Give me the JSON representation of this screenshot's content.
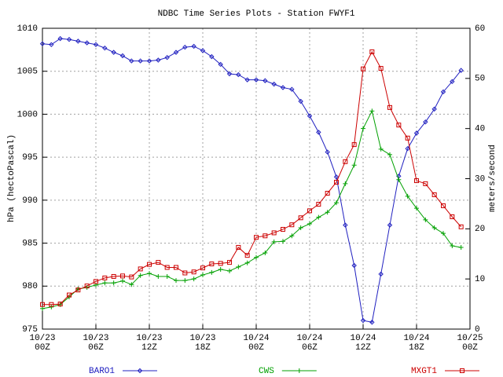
{
  "chart_data": {
    "type": "line",
    "title": "NDBC Time Series Plots - Station FWYF1",
    "ylabel": "hPa (hectoPascal)",
    "y2label": "meters/second",
    "x": [
      0,
      1,
      2,
      3,
      4,
      5,
      6,
      7,
      8,
      9,
      10,
      11,
      12,
      13,
      14,
      15,
      16,
      17,
      18,
      19,
      20,
      21,
      22,
      23,
      24,
      25,
      26,
      27,
      28,
      29,
      30,
      31,
      32,
      33,
      34,
      35,
      36,
      37,
      38,
      39,
      40,
      41,
      42,
      43,
      44,
      45,
      46,
      47
    ],
    "xlim": [
      0,
      48
    ],
    "xticks": [
      {
        "value": 0,
        "label": "10/23\n00Z"
      },
      {
        "value": 6,
        "label": "10/23\n06Z"
      },
      {
        "value": 12,
        "label": "10/23\n12Z"
      },
      {
        "value": 18,
        "label": "10/23\n18Z"
      },
      {
        "value": 24,
        "label": "10/24\n00Z"
      },
      {
        "value": 30,
        "label": "10/24\n06Z"
      },
      {
        "value": 36,
        "label": "10/24\n12Z"
      },
      {
        "value": 42,
        "label": "10/24\n18Z"
      },
      {
        "value": 48,
        "label": "10/25\n00Z"
      }
    ],
    "ylim": [
      975,
      1010
    ],
    "yticks": [
      975,
      980,
      985,
      990,
      995,
      1000,
      1005,
      1010
    ],
    "y2lim": [
      0,
      60
    ],
    "y2ticks": [
      0,
      10,
      20,
      30,
      40,
      50,
      60
    ],
    "grid": true,
    "legend": "bottom",
    "series": [
      {
        "name": "BARO1",
        "color": "#2020c0",
        "marker": "diamond",
        "axis": "y",
        "values": [
          1008.2,
          1008.1,
          1008.8,
          1008.7,
          1008.5,
          1008.3,
          1008.1,
          1007.7,
          1007.2,
          1006.8,
          1006.2,
          1006.2,
          1006.2,
          1006.3,
          1006.6,
          1007.2,
          1007.8,
          1007.9,
          1007.4,
          1006.7,
          1005.8,
          1004.7,
          1004.6,
          1004.0,
          1004.0,
          1003.9,
          1003.5,
          1003.1,
          1002.9,
          1001.5,
          999.8,
          997.9,
          995.6,
          992.7,
          987.1,
          982.4,
          976.0,
          975.8,
          981.4,
          987.1,
          992.8,
          996.0,
          997.8,
          999.1,
          1000.6,
          1002.6,
          1003.8,
          1005.1
        ]
      },
      {
        "name": "CWS",
        "color": "#00a000",
        "marker": "plus",
        "axis": "y2",
        "values": [
          4.1,
          4.4,
          4.9,
          6.4,
          8.0,
          8.3,
          8.8,
          9.2,
          9.2,
          9.6,
          8.9,
          10.7,
          11.1,
          10.5,
          10.5,
          9.7,
          9.7,
          10.0,
          10.8,
          11.3,
          11.9,
          11.6,
          12.4,
          13.2,
          14.3,
          15.2,
          17.4,
          17.5,
          18.6,
          20.2,
          21.0,
          22.3,
          23.3,
          25.2,
          29.0,
          32.7,
          40.0,
          43.5,
          35.9,
          34.8,
          29.8,
          26.5,
          24.1,
          21.8,
          20.2,
          19.1,
          16.6,
          16.3
        ]
      },
      {
        "name": "MXGT1",
        "color": "#cc0000",
        "marker": "square",
        "axis": "y2",
        "values": [
          4.9,
          4.9,
          5.0,
          6.8,
          7.8,
          8.6,
          9.5,
          10.2,
          10.5,
          10.6,
          10.4,
          12.0,
          12.9,
          13.3,
          12.3,
          12.3,
          11.2,
          11.4,
          12.2,
          13.0,
          13.1,
          13.3,
          16.3,
          14.7,
          18.3,
          18.6,
          19.2,
          19.9,
          20.8,
          22.2,
          23.6,
          24.9,
          27.1,
          29.3,
          33.4,
          36.8,
          51.9,
          55.3,
          52.0,
          44.2,
          40.7,
          38.1,
          29.6,
          29.0,
          26.8,
          24.6,
          22.4,
          20.4
        ]
      }
    ]
  }
}
